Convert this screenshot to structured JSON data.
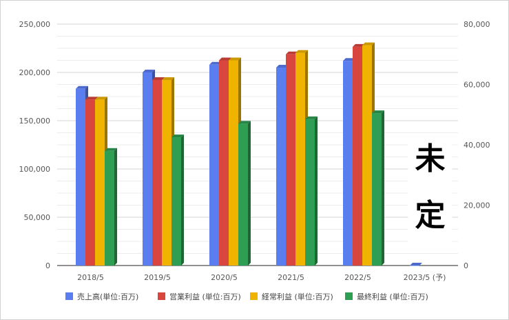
{
  "chart_data": {
    "type": "bar",
    "categories": [
      "2018/5",
      "2019/5",
      "2020/5",
      "2021/5",
      "2022/5",
      "2023/5 (予)"
    ],
    "series": [
      {
        "name": "売上高(単位:百万)",
        "axis": "left",
        "color": "#5a7df0",
        "values": [
          183000,
          200000,
          208000,
          205000,
          212000,
          0
        ]
      },
      {
        "name": "営業利益 (単位:百万)",
        "axis": "right",
        "color": "#d9463e",
        "values": [
          55000,
          61500,
          68000,
          70000,
          72500,
          null
        ]
      },
      {
        "name": "経常利益 (単位:百万)",
        "axis": "right",
        "color": "#f0b400",
        "values": [
          55000,
          61500,
          68000,
          70500,
          73000,
          null
        ]
      },
      {
        "name": "最終利益 (単位:百万)",
        "axis": "right",
        "color": "#2e9e52",
        "values": [
          38000,
          42500,
          47000,
          48500,
          50500,
          null
        ]
      }
    ],
    "y_left": {
      "min": 0,
      "max": 250000,
      "ticks": [
        "0",
        "50,000",
        "100,000",
        "150,000",
        "200,000",
        "250,000"
      ]
    },
    "y_right": {
      "min": 0,
      "max": 80000,
      "ticks": [
        "0",
        "20,000",
        "40,000",
        "60,000",
        "80,000"
      ]
    },
    "grid": true,
    "legend_position": "bottom",
    "annotation": "未定"
  }
}
